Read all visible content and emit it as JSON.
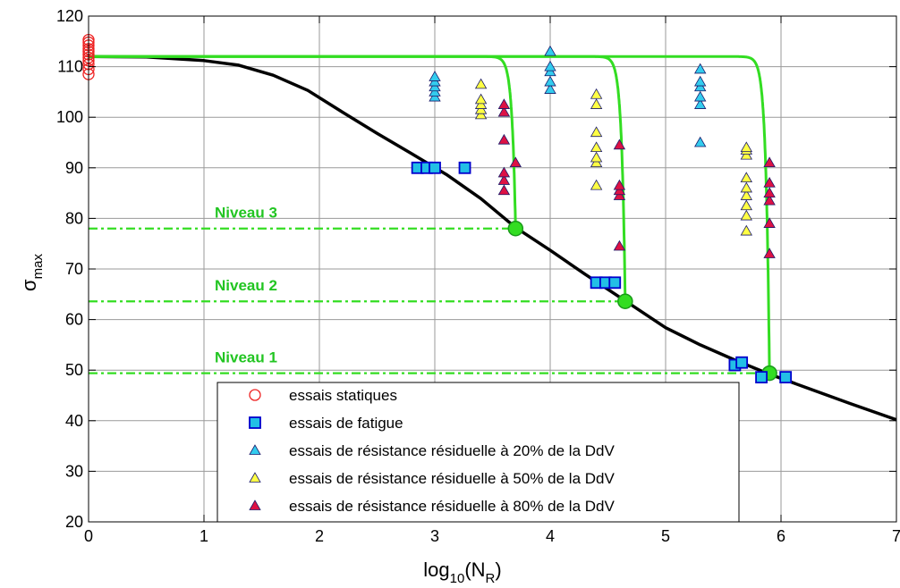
{
  "chart_data": {
    "type": "scatter",
    "xlabel_main": "log",
    "xlabel_sub": "10",
    "xlabel_open": "(N",
    "xlabel_sub2": "R",
    "xlabel_close": ")",
    "ylabel_main": "σ",
    "ylabel_sub": "max",
    "xlim": [
      0,
      7
    ],
    "ylim": [
      20,
      120
    ],
    "xticks": [
      0,
      1,
      2,
      3,
      4,
      5,
      6,
      7
    ],
    "yticks": [
      20,
      30,
      40,
      50,
      60,
      70,
      80,
      90,
      100,
      110,
      120
    ],
    "grid": true,
    "legend_position": "bottom-center",
    "colors": {
      "static": "#ee2222",
      "fatigue_edge": "#0000cc",
      "fatigue_fill": "#22bfe6",
      "t20": "#33ccee",
      "t50": "#ffff44",
      "t80": "#dd1144",
      "green": "#33dd22",
      "black": "#000000"
    },
    "series": [
      {
        "name": "essais statiques",
        "marker": "circle",
        "points": [
          [
            0,
            108.5
          ],
          [
            0,
            109.5
          ],
          [
            0,
            110.5
          ],
          [
            0,
            111.2
          ],
          [
            0,
            111.8
          ],
          [
            0,
            112.4
          ],
          [
            0,
            113
          ],
          [
            0,
            113.5
          ],
          [
            0,
            114.2
          ],
          [
            0,
            114.8
          ],
          [
            0,
            115.3
          ]
        ]
      },
      {
        "name": "essais de fatigue",
        "marker": "square",
        "points": [
          [
            2.85,
            90
          ],
          [
            2.93,
            90
          ],
          [
            3.0,
            90
          ],
          [
            3.26,
            90
          ],
          [
            4.4,
            67.3
          ],
          [
            4.48,
            67.3
          ],
          [
            4.56,
            67.3
          ],
          [
            5.6,
            51
          ],
          [
            5.66,
            51.5
          ],
          [
            5.83,
            48.6
          ],
          [
            6.04,
            48.6
          ]
        ]
      },
      {
        "name": "essais de résistance résiduelle à 20% de la DdV",
        "marker": "triangle",
        "points": [
          [
            3,
            104
          ],
          [
            3,
            105
          ],
          [
            3,
            106
          ],
          [
            3,
            107
          ],
          [
            3,
            108
          ],
          [
            4,
            105.5
          ],
          [
            4,
            107
          ],
          [
            4,
            109
          ],
          [
            4,
            110
          ],
          [
            4,
            113
          ],
          [
            5.3,
            95
          ],
          [
            5.3,
            102.5
          ],
          [
            5.3,
            104
          ],
          [
            5.3,
            106
          ],
          [
            5.3,
            107
          ],
          [
            5.3,
            109.5
          ]
        ]
      },
      {
        "name": "essais de résistance résiduelle à 50% de la DdV",
        "marker": "triangle",
        "points": [
          [
            3.4,
            100.5
          ],
          [
            3.4,
            101.5
          ],
          [
            3.4,
            102.5
          ],
          [
            3.4,
            103.5
          ],
          [
            3.4,
            106.5
          ],
          [
            4.4,
            86.5
          ],
          [
            4.4,
            91
          ],
          [
            4.4,
            92
          ],
          [
            4.4,
            94
          ],
          [
            4.4,
            97
          ],
          [
            4.4,
            102.5
          ],
          [
            4.4,
            104.5
          ],
          [
            5.7,
            77.5
          ],
          [
            5.7,
            80.5
          ],
          [
            5.7,
            82.5
          ],
          [
            5.7,
            84.5
          ],
          [
            5.7,
            86
          ],
          [
            5.7,
            88
          ],
          [
            5.7,
            92.5
          ],
          [
            5.7,
            93.5
          ],
          [
            5.7,
            94
          ]
        ]
      },
      {
        "name": "essais de résistance résiduelle à 80% de la DdV",
        "marker": "triangle",
        "points": [
          [
            3.6,
            85.5
          ],
          [
            3.6,
            87.5
          ],
          [
            3.6,
            89
          ],
          [
            3.6,
            95.5
          ],
          [
            3.6,
            101
          ],
          [
            3.6,
            102.5
          ],
          [
            3.7,
            91
          ],
          [
            4.6,
            74.5
          ],
          [
            4.6,
            84.5
          ],
          [
            4.6,
            85.5
          ],
          [
            4.6,
            86.5
          ],
          [
            4.6,
            94.5
          ],
          [
            5.9,
            73
          ],
          [
            5.9,
            79
          ],
          [
            5.9,
            83.5
          ],
          [
            5.9,
            85
          ],
          [
            5.9,
            87
          ],
          [
            5.9,
            91
          ]
        ]
      }
    ],
    "fatigue_curve": [
      [
        0,
        112
      ],
      [
        0.5,
        111.9
      ],
      [
        1,
        111.2
      ],
      [
        1.3,
        110.3
      ],
      [
        1.6,
        108.3
      ],
      [
        1.9,
        105.3
      ],
      [
        2.2,
        101
      ],
      [
        2.5,
        96.8
      ],
      [
        2.8,
        92.8
      ],
      [
        3.1,
        88.7
      ],
      [
        3.4,
        83.9
      ],
      [
        3.7,
        78.2
      ],
      [
        4.0,
        73.7
      ],
      [
        4.3,
        69
      ],
      [
        4.65,
        63.7
      ],
      [
        5.0,
        58.4
      ],
      [
        5.3,
        55
      ],
      [
        5.6,
        52
      ],
      [
        5.9,
        49.2
      ],
      [
        6.2,
        46.7
      ],
      [
        6.6,
        43.4
      ],
      [
        7,
        40.2
      ]
    ],
    "residual_curves": [
      {
        "n_end": 3.7,
        "sigma_end": 78
      },
      {
        "n_end": 4.65,
        "sigma_end": 63.6
      },
      {
        "n_end": 5.9,
        "sigma_end": 49.4
      }
    ],
    "sigma0": 112,
    "levels": [
      {
        "label": "Niveau 3",
        "sigma": 78,
        "x_end": 3.7
      },
      {
        "label": "Niveau 2",
        "sigma": 63.6,
        "x_end": 4.65
      },
      {
        "label": "Niveau 1",
        "sigma": 49.4,
        "x_end": 5.9
      }
    ]
  }
}
